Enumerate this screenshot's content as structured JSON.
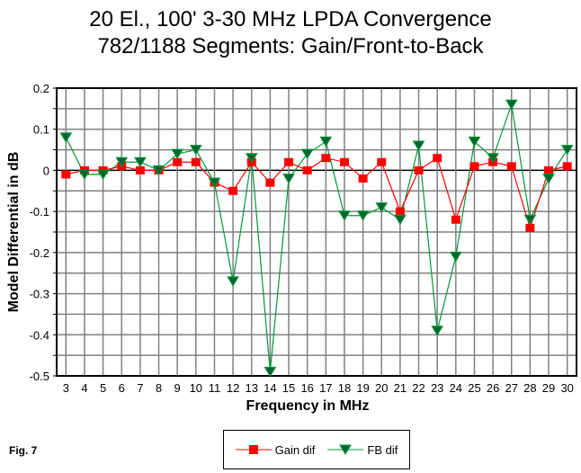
{
  "chart_data": {
    "type": "line",
    "title": "20 El., 100' 3-30 MHz LPDA Convergence",
    "subtitle": "782/1188 Segments:  Gain/Front-to-Back",
    "xlabel": "Frequency in MHz",
    "ylabel": "Model Differential in dB",
    "x": [
      3,
      4,
      5,
      6,
      7,
      8,
      9,
      10,
      11,
      12,
      13,
      14,
      15,
      16,
      17,
      18,
      19,
      20,
      21,
      22,
      23,
      24,
      25,
      26,
      27,
      28,
      29,
      30
    ],
    "xlim": [
      2.5,
      30.5
    ],
    "ylim": [
      -0.5,
      0.2
    ],
    "yticks": [
      "0.2",
      "0.1",
      "0",
      "-0.1",
      "-0.2",
      "-0.3",
      "-0.4",
      "-0.5"
    ],
    "grid": true,
    "legend_position": "bottom",
    "series": [
      {
        "name": "Gain dif",
        "color": "#ff0000",
        "marker": "square",
        "values": [
          -0.01,
          0,
          0,
          0.01,
          0,
          0,
          0.02,
          0.02,
          -0.03,
          -0.05,
          0.02,
          -0.03,
          0.02,
          0,
          0.03,
          0.02,
          -0.02,
          0.02,
          -0.1,
          0,
          0.03,
          -0.12,
          0.01,
          0.02,
          0.01,
          -0.14,
          0,
          0.01
        ]
      },
      {
        "name": "FB dif",
        "color": "#009933",
        "marker": "triangle-down",
        "values": [
          0.08,
          -0.01,
          -0.01,
          0.02,
          0.02,
          0,
          0.04,
          0.05,
          -0.03,
          -0.27,
          0.03,
          -0.49,
          -0.02,
          0.04,
          0.07,
          -0.11,
          -0.11,
          -0.09,
          -0.12,
          0.06,
          -0.39,
          -0.21,
          0.07,
          0.03,
          0.16,
          -0.12,
          -0.02,
          0.05
        ]
      }
    ]
  },
  "figure_label": "Fig. 7"
}
